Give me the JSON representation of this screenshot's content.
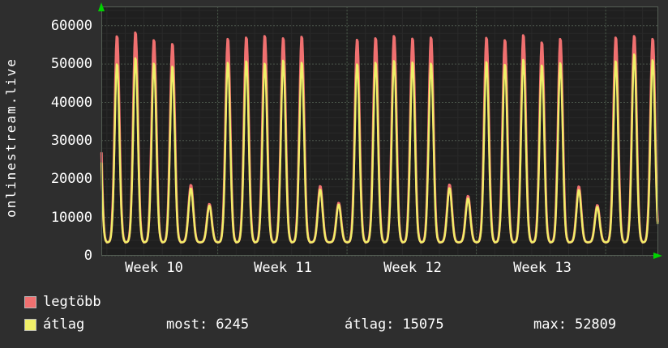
{
  "vertical_title": "onlinestream.live",
  "colors": {
    "background": "#2e2e2e",
    "plot_background": "#1f1f1f",
    "text": "#ffffff",
    "axis_arrow": "#00d200",
    "grid_major": "#4b554b",
    "grid_week": "#465646",
    "grid_minor": "#292929"
  },
  "y_axis": {
    "ticks": [
      "0",
      "10000",
      "20000",
      "30000",
      "40000",
      "50000",
      "60000"
    ]
  },
  "x_axis": {
    "labels": [
      "Week 10",
      "Week 11",
      "Week 12",
      "Week 13"
    ]
  },
  "legend": {
    "items": [
      {
        "label": "legtöbb",
        "color": "#f07070"
      },
      {
        "label": "átlag",
        "color": "#efef68"
      }
    ]
  },
  "stats_row": {
    "most_label": "most:",
    "most_value": "6245",
    "avg_label": "átlag:",
    "avg_value": "15075",
    "max_label": "max:",
    "max_value": "52809"
  },
  "chart_data": {
    "type": "line",
    "title": "onlinestream.live",
    "x_unit": "days",
    "x_tick_labels": [
      "Week 10",
      "Week 11",
      "Week 12",
      "Week 13"
    ],
    "ylim": [
      0,
      65000
    ],
    "y_major_step": 10000,
    "grid": true,
    "legend_position": "bottom-left",
    "trough": 3500,
    "series": [
      {
        "name": "legtöbb",
        "color": "#f07070",
        "daily_peaks": [
          57000,
          57500,
          58500,
          56500,
          55500,
          18500,
          13500,
          56800,
          57200,
          57600,
          57000,
          57400,
          18200,
          13800,
          56600,
          57000,
          57600,
          56900,
          57200,
          18600,
          15600,
          57100,
          56500,
          57800,
          55900,
          56800,
          18100,
          13200,
          57200,
          57600,
          56800
        ]
      },
      {
        "name": "átlag",
        "color": "#efef68",
        "daily_peaks": [
          51000,
          50200,
          51800,
          50400,
          49600,
          17600,
          13100,
          50600,
          51000,
          50400,
          51200,
          50600,
          17300,
          13400,
          50200,
          50600,
          51100,
          50700,
          50400,
          17700,
          15000,
          50800,
          50100,
          51400,
          49900,
          50500,
          17200,
          12800,
          51000,
          52809,
          51300
        ]
      }
    ],
    "stats": {
      "most": 6245,
      "atlag": 15075,
      "max": 52809
    }
  }
}
